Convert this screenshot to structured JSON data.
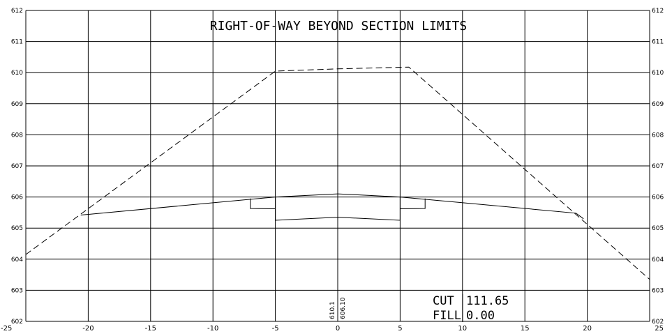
{
  "title": "RIGHT-OF-WAY BEYOND SECTION LIMITS",
  "cut_label": "CUT",
  "cut_value": "111.65",
  "fill_label": "FILL",
  "fill_value": "0.00",
  "existing_elevation": "610.1",
  "proposed_elevation": "606.10",
  "chart_data": {
    "type": "line",
    "xlim": [
      -25,
      25
    ],
    "ylim": [
      602,
      612
    ],
    "x_ticks": [
      -25,
      -20,
      -15,
      -10,
      -5,
      0,
      5,
      10,
      15,
      20,
      25
    ],
    "x_tick_labels": [
      "-25",
      "-20",
      "-15",
      "-10",
      "-5",
      "0",
      "5",
      "10",
      "15",
      "20",
      "25"
    ],
    "y_ticks": [
      602,
      603,
      604,
      605,
      606,
      607,
      608,
      609,
      610,
      611,
      612
    ],
    "y_tick_labels_left": [
      "602",
      "603",
      "604",
      "605",
      "606",
      "607",
      "608",
      "609",
      "610",
      "611",
      "612"
    ],
    "y_tick_labels_right": [
      "602",
      "603",
      "604",
      "605",
      "606",
      "607",
      "608",
      "609",
      "610",
      "611",
      "612"
    ],
    "grid": true,
    "series": [
      {
        "style": "dashed",
        "points": [
          [
            -25,
            604.15
          ],
          [
            -5,
            610.05
          ],
          [
            0,
            610.12
          ],
          [
            5.7,
            610.18
          ],
          [
            25,
            603.35
          ]
        ]
      },
      {
        "style": "solid",
        "points": [
          [
            -20.6,
            605.42
          ],
          [
            -5,
            606.0
          ],
          [
            0,
            606.1
          ],
          [
            5,
            606.0
          ],
          [
            19.1,
            605.48
          ],
          [
            19.7,
            605.3
          ]
        ]
      },
      {
        "style": "solid",
        "points": [
          [
            -7,
            605.95
          ],
          [
            -7,
            605.63
          ],
          [
            -5,
            605.62
          ]
        ]
      },
      {
        "style": "solid",
        "points": [
          [
            -5,
            606.0
          ],
          [
            -5,
            605.25
          ],
          [
            0,
            605.35
          ],
          [
            5,
            605.25
          ],
          [
            5,
            606.0
          ]
        ]
      },
      {
        "style": "solid",
        "points": [
          [
            5,
            605.62
          ],
          [
            7,
            605.63
          ],
          [
            7,
            605.95
          ]
        ]
      },
      {
        "style": "solid",
        "points": [
          [
            0,
            602
          ],
          [
            0,
            602.9
          ]
        ]
      }
    ]
  }
}
